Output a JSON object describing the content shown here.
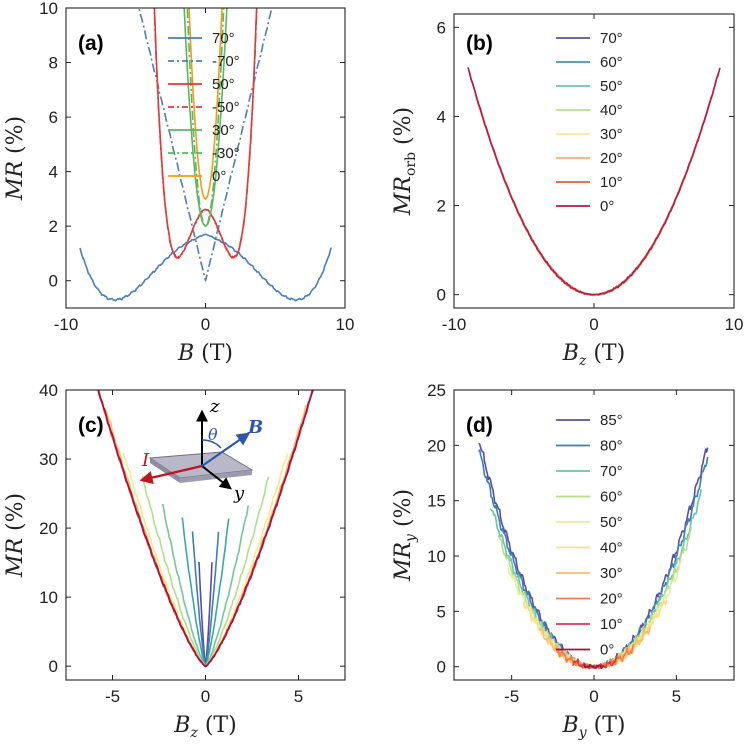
{
  "chart_data": [
    {
      "id": "a",
      "type": "line",
      "panel_label": "(a)",
      "xlabel": {
        "var": "B",
        "sub": "",
        "unit": " (T)"
      },
      "ylabel": {
        "var": "MR",
        "sub": "",
        "unit": " (%)"
      },
      "xlim": [
        -10,
        10
      ],
      "ylim": [
        -1,
        10
      ],
      "xticks": [
        -10,
        0,
        10
      ],
      "yticks": [
        0,
        2,
        4,
        6,
        8,
        10
      ],
      "legend_position": "top-center",
      "series": [
        {
          "name": "70°",
          "color": "#4a7eb8",
          "dash": "solid",
          "xmin": -9,
          "xmax": 9,
          "min": -0.7,
          "a": 2.27,
          "h": 6.5,
          "amp": 0.05,
          "power": 2,
          "mode": "w"
        },
        {
          "name": "-70°",
          "color": "#4a7eb8",
          "dash": "dashdot",
          "xmin": -9,
          "xmax": 9,
          "min": 0.0,
          "a": 2.1,
          "amp": 0.05,
          "power": 1,
          "mode": "abs"
        },
        {
          "name": "50°",
          "color": "#e03a3a",
          "dash": "solid",
          "xmin": -9,
          "xmax": 9,
          "min": 0.85,
          "a": 1.65,
          "h": 2.0,
          "amp": 0.05,
          "power": 2,
          "mode": "w"
        },
        {
          "name": "-50°",
          "color": "#e03a3a",
          "dash": "dashdot",
          "xmin": -9,
          "xmax": 9,
          "min": 0.85,
          "a": 1.62,
          "h": 2.0,
          "amp": 0.05,
          "power": 2,
          "mode": "w"
        },
        {
          "name": "30°",
          "color": "#5cb85c",
          "dash": "solid",
          "xmin": -9,
          "xmax": 9,
          "min": 2.0,
          "a": 3.4,
          "amp": 0.06,
          "power": 2,
          "mode": "sq"
        },
        {
          "name": "-30°",
          "color": "#5cb85c",
          "dash": "dashdot",
          "xmin": -9,
          "xmax": 9,
          "min": 2.0,
          "a": 4.7,
          "amp": 0.05,
          "power": 2,
          "mode": "sq"
        },
        {
          "name": "0°",
          "color": "#f39a1e",
          "dash": "solid",
          "xmin": -9,
          "xmax": 9,
          "min": 3.0,
          "a": 5.0,
          "amp": 0.05,
          "power": 2,
          "mode": "sq"
        }
      ]
    },
    {
      "id": "b",
      "type": "line",
      "panel_label": "(b)",
      "xlabel": {
        "var": "B",
        "sub": "z",
        "unit": " (T)"
      },
      "ylabel": {
        "var": "MR",
        "sub": "orb",
        "unit": " (%)"
      },
      "xlim": [
        -10,
        10
      ],
      "ylim": [
        -0.3,
        6.3
      ],
      "xticks": [
        -10,
        0,
        10
      ],
      "yticks": [
        0,
        2,
        4,
        6
      ],
      "legend_position": "top-center",
      "series": [
        {
          "name": "70°",
          "color": "#5b4ea2",
          "dash": "solid",
          "xmin": -3.1,
          "xmax": 3.1,
          "min": 0.0,
          "a": 0.063,
          "amp": 0.03,
          "power": 2,
          "mode": "sq"
        },
        {
          "name": "60°",
          "color": "#3b9bb3",
          "dash": "solid",
          "xmin": -4.5,
          "xmax": 4.5,
          "min": 0.0,
          "a": 0.063,
          "amp": 0.03,
          "power": 2,
          "mode": "sq"
        },
        {
          "name": "50°",
          "color": "#6cc4a0",
          "dash": "solid",
          "xmin": -5.8,
          "xmax": 5.8,
          "min": 0.0,
          "a": 0.063,
          "amp": 0.03,
          "power": 2,
          "mode": "sq"
        },
        {
          "name": "40°",
          "color": "#b8e08a",
          "dash": "solid",
          "xmin": -6.9,
          "xmax": 6.9,
          "min": 0.0,
          "a": 0.063,
          "amp": 0.03,
          "power": 2,
          "mode": "sq"
        },
        {
          "name": "30°",
          "color": "#f4ec8d",
          "dash": "solid",
          "xmin": -7.8,
          "xmax": 7.8,
          "min": 0.0,
          "a": 0.063,
          "amp": 0.03,
          "power": 2,
          "mode": "sq"
        },
        {
          "name": "20°",
          "color": "#fbb060",
          "dash": "solid",
          "xmin": -8.4,
          "xmax": 8.4,
          "min": 0.0,
          "a": 0.063,
          "amp": 0.03,
          "power": 2,
          "mode": "sq"
        },
        {
          "name": "10°",
          "color": "#ea5b3f",
          "dash": "solid",
          "xmin": -8.9,
          "xmax": 8.9,
          "min": 0.0,
          "a": 0.063,
          "amp": 0.03,
          "power": 2,
          "mode": "sq"
        },
        {
          "name": "0°",
          "color": "#b8194a",
          "dash": "solid",
          "xmin": -9.0,
          "xmax": 9.0,
          "min": 0.0,
          "a": 0.063,
          "amp": 0.03,
          "power": 2,
          "mode": "sq"
        }
      ]
    },
    {
      "id": "c",
      "type": "line",
      "panel_label": "(c)",
      "xlabel": {
        "var": "B",
        "sub": "z",
        "unit": " (T)"
      },
      "ylabel": {
        "var": "MR",
        "sub": "",
        "unit": " (%)"
      },
      "xlim": [
        -7.5,
        7.5
      ],
      "ylim": [
        -2,
        40
      ],
      "xticks": [
        -5,
        0,
        5
      ],
      "yticks": [
        0,
        10,
        20,
        30,
        40
      ],
      "inset": {
        "axis_z": "z",
        "axis_y": "y",
        "field": "B",
        "current": "I",
        "angle": "θ"
      },
      "series": [
        {
          "color": "#5b4ea2",
          "dash": "solid",
          "xmin": -0.35,
          "xmax": 0.35,
          "min": 0.0,
          "a": 59,
          "amp": 0.35,
          "power": 1.3,
          "mode": "abs"
        },
        {
          "color": "#3b7fb8",
          "dash": "solid",
          "xmin": -0.7,
          "xmax": 0.7,
          "min": 0.0,
          "a": 31,
          "amp": 0.35,
          "power": 1.3,
          "mode": "abs"
        },
        {
          "color": "#3ba6a8",
          "dash": "solid",
          "xmin": -1.25,
          "xmax": 1.25,
          "min": 0.0,
          "a": 16,
          "amp": 0.35,
          "power": 1.3,
          "mode": "abs"
        },
        {
          "color": "#74c69a",
          "dash": "solid",
          "xmin": -2.3,
          "xmax": 2.3,
          "min": 0.0,
          "a": 7.9,
          "amp": 0.35,
          "power": 1.3,
          "mode": "abs"
        },
        {
          "color": "#b2de8e",
          "dash": "solid",
          "xmin": -3.4,
          "xmax": 3.4,
          "min": 0.0,
          "a": 5.6,
          "amp": 0.35,
          "power": 1.3,
          "mode": "abs"
        },
        {
          "color": "#f2ea90",
          "dash": "solid",
          "xmin": -4.4,
          "xmax": 4.4,
          "min": 0.0,
          "a": 4.5,
          "amp": 0.35,
          "power": 1.3,
          "mode": "abs"
        },
        {
          "color": "#fdbd6c",
          "dash": "solid",
          "xmin": -5.4,
          "xmax": 5.4,
          "min": 0.0,
          "a": 4.2,
          "amp": 0.35,
          "power": 1.3,
          "mode": "abs"
        },
        {
          "color": "#f57d4a",
          "dash": "solid",
          "xmin": -6.2,
          "xmax": 6.2,
          "min": 0.0,
          "a": 4.1,
          "amp": 0.35,
          "power": 1.3,
          "mode": "abs"
        },
        {
          "color": "#d8394c",
          "dash": "solid",
          "xmin": -6.8,
          "xmax": 6.8,
          "min": 0.0,
          "a": 4.1,
          "amp": 0.35,
          "power": 1.3,
          "mode": "abs"
        },
        {
          "color": "#a3123f",
          "dash": "solid",
          "xmin": -7.0,
          "xmax": 7.0,
          "min": 0.0,
          "a": 4.1,
          "amp": 0.35,
          "power": 1.3,
          "mode": "abs"
        }
      ]
    },
    {
      "id": "d",
      "type": "line",
      "panel_label": "(d)",
      "xlabel": {
        "var": "B",
        "sub": "y",
        "unit": " (T)"
      },
      "ylabel": {
        "var": "MR",
        "sub": "y",
        "unit": " (%)"
      },
      "xlim": [
        -8.5,
        8.5
      ],
      "ylim": [
        -1.2,
        25
      ],
      "xticks": [
        -5,
        0,
        5
      ],
      "yticks": [
        0,
        5,
        10,
        15,
        20,
        25
      ],
      "legend_position": "top-center",
      "series": [
        {
          "name": "85°",
          "color": "#5b4ea2",
          "dash": "solid",
          "xmin": -7.0,
          "xmax": 6.9,
          "min": 0.0,
          "a": 0.42,
          "amp": 0.5,
          "power": 2,
          "mode": "sq"
        },
        {
          "name": "80°",
          "color": "#3b7fb8",
          "dash": "solid",
          "xmin": -7.0,
          "xmax": 6.9,
          "min": 0.0,
          "a": 0.4,
          "amp": 0.5,
          "power": 2,
          "mode": "sq"
        },
        {
          "name": "70°",
          "color": "#6cc4a0",
          "dash": "solid",
          "xmin": -6.3,
          "xmax": 6.5,
          "min": 0.0,
          "a": 0.37,
          "amp": 0.5,
          "power": 2,
          "mode": "sq"
        },
        {
          "name": "60°",
          "color": "#b2de8e",
          "dash": "solid",
          "xmin": -5.8,
          "xmax": 5.9,
          "min": 0.0,
          "a": 0.35,
          "amp": 0.5,
          "power": 2,
          "mode": "sq"
        },
        {
          "name": "50°",
          "color": "#e6ee9c",
          "dash": "solid",
          "xmin": -5.2,
          "xmax": 5.3,
          "min": 0.0,
          "a": 0.33,
          "amp": 0.5,
          "power": 2,
          "mode": "sq"
        },
        {
          "name": "40°",
          "color": "#fde08b",
          "dash": "solid",
          "xmin": -4.3,
          "xmax": 4.4,
          "min": 0.0,
          "a": 0.32,
          "amp": 0.5,
          "power": 2,
          "mode": "sq"
        },
        {
          "name": "30°",
          "color": "#fdbd6c",
          "dash": "solid",
          "xmin": -3.3,
          "xmax": 3.4,
          "min": 0.0,
          "a": 0.31,
          "amp": 0.5,
          "power": 2,
          "mode": "sq"
        },
        {
          "name": "20°",
          "color": "#f57d4a",
          "dash": "solid",
          "xmin": -2.3,
          "xmax": 2.4,
          "min": 0.0,
          "a": 0.3,
          "amp": 0.5,
          "power": 2,
          "mode": "sq"
        },
        {
          "name": "10°",
          "color": "#d8394c",
          "dash": "solid",
          "xmin": -1.3,
          "xmax": 1.4,
          "min": 0.0,
          "a": 0.3,
          "amp": 0.5,
          "power": 2,
          "mode": "sq"
        },
        {
          "name": "0°",
          "color": "#a3123f",
          "dash": "solid",
          "xmin": -0.6,
          "xmax": 0.6,
          "min": 0.0,
          "a": 0.3,
          "amp": 0.5,
          "power": 2,
          "mode": "sq"
        }
      ]
    }
  ]
}
